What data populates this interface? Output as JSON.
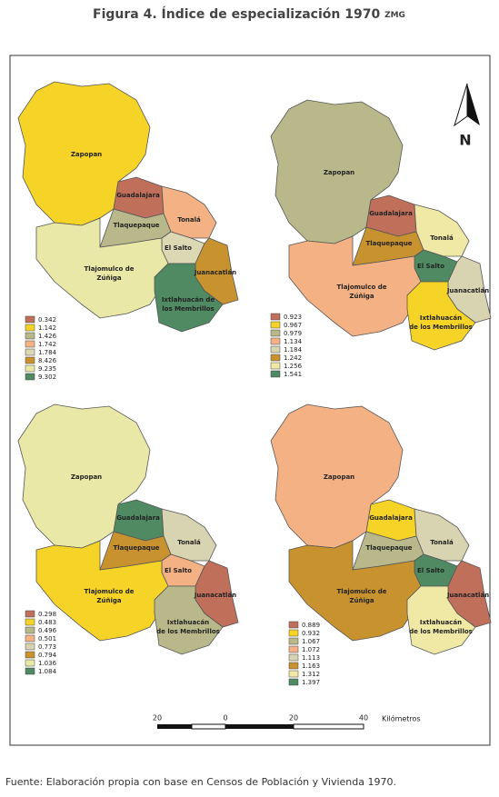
{
  "header": {
    "title": "Figura 4. Índice de especialización 1970",
    "title_suffix": "ZMG"
  },
  "north": "N",
  "scale": {
    "labels": [
      "20",
      "0",
      "20",
      "40"
    ],
    "unit": "Kilómetros"
  },
  "maps": [
    {
      "regions": [
        {
          "label": [
            "Zapopan"
          ],
          "color": "#f5d327"
        },
        {
          "label": [
            "Guadalajara"
          ],
          "color": "#c0705a"
        },
        {
          "label": [
            "Tonalá"
          ],
          "color": "#f4b183"
        },
        {
          "label": [
            "Tlaquepaque"
          ],
          "color": "#b8b88a"
        },
        {
          "label": [
            "El Salto"
          ],
          "color": "#ddd8b4"
        },
        {
          "label": [
            "Tlajomulco de",
            "Zúñiga"
          ],
          "color": "#e9e8a6"
        },
        {
          "label": [
            "Juanacatlán"
          ],
          "color": "#c8922f"
        },
        {
          "label": [
            "Ixtlahuacán de",
            "los Membrillos"
          ],
          "color": "#4f8a62"
        }
      ],
      "legend": [
        {
          "value": "0.342",
          "color": "#c0705a"
        },
        {
          "value": "1.142",
          "color": "#f5d327"
        },
        {
          "value": "1.426",
          "color": "#b8b88a"
        },
        {
          "value": "1.742",
          "color": "#f4b183"
        },
        {
          "value": "1.784",
          "color": "#ddd8b4"
        },
        {
          "value": "8.426",
          "color": "#c8922f"
        },
        {
          "value": "9.235",
          "color": "#e9e8a6"
        },
        {
          "value": "9.302",
          "color": "#4f8a62"
        }
      ]
    },
    {
      "regions": [
        {
          "label": [
            "Zapopan"
          ],
          "color": "#b8b88a"
        },
        {
          "label": [
            "Guadalajara"
          ],
          "color": "#c0705a"
        },
        {
          "label": [
            "Tonalá"
          ],
          "color": "#efe9a5"
        },
        {
          "label": [
            "Tlaquepaque"
          ],
          "color": "#c8922f"
        },
        {
          "label": [
            "El Salto"
          ],
          "color": "#4f8a62"
        },
        {
          "label": [
            "Tlajomulco de",
            "Zúñiga"
          ],
          "color": "#f4b183"
        },
        {
          "label": [
            "Juanacatlán"
          ],
          "color": "#d8d3b0"
        },
        {
          "label": [
            "Ixtlahuacán",
            "de los Membrillos"
          ],
          "color": "#f5d327"
        }
      ],
      "legend": [
        {
          "value": "0.923",
          "color": "#c0705a"
        },
        {
          "value": "0.967",
          "color": "#f5d327"
        },
        {
          "value": "0.979",
          "color": "#b8b88a"
        },
        {
          "value": "1.134",
          "color": "#f4b183"
        },
        {
          "value": "1.184",
          "color": "#d8d3b0"
        },
        {
          "value": "1.242",
          "color": "#c8922f"
        },
        {
          "value": "1.256",
          "color": "#efe9a5"
        },
        {
          "value": "1.541",
          "color": "#4f8a62"
        }
      ]
    },
    {
      "regions": [
        {
          "label": [
            "Zapopan"
          ],
          "color": "#e9e8a6"
        },
        {
          "label": [
            "Guadalajara"
          ],
          "color": "#4f8a62"
        },
        {
          "label": [
            "Tonalá"
          ],
          "color": "#d8d3b0"
        },
        {
          "label": [
            "Tlaquepaque"
          ],
          "color": "#c8922f"
        },
        {
          "label": [
            "El Salto"
          ],
          "color": "#f4b183"
        },
        {
          "label": [
            "Tlajomulco de",
            "Zúñiga"
          ],
          "color": "#f5d327"
        },
        {
          "label": [
            "Juanacatlán"
          ],
          "color": "#c0705a"
        },
        {
          "label": [
            "Ixtlahuacán",
            "de los Membrillos"
          ],
          "color": "#b8b88a"
        }
      ],
      "legend": [
        {
          "value": "0.298",
          "color": "#c0705a"
        },
        {
          "value": "0.483",
          "color": "#f5d327"
        },
        {
          "value": "0.496",
          "color": "#b8b88a"
        },
        {
          "value": "0.501",
          "color": "#f4b183"
        },
        {
          "value": "0.773",
          "color": "#d8d3b0"
        },
        {
          "value": "0.794",
          "color": "#c8922f"
        },
        {
          "value": "1.036",
          "color": "#e9e8a6"
        },
        {
          "value": "1.084",
          "color": "#4f8a62"
        }
      ]
    },
    {
      "regions": [
        {
          "label": [
            "Zapopan"
          ],
          "color": "#f4b183"
        },
        {
          "label": [
            "Guadalajara"
          ],
          "color": "#f5d327"
        },
        {
          "label": [
            "Tonalá"
          ],
          "color": "#d8d3b0"
        },
        {
          "label": [
            "Tlaquepaque"
          ],
          "color": "#b8b88a"
        },
        {
          "label": [
            "El Salto"
          ],
          "color": "#4f8a62"
        },
        {
          "label": [
            "Tlajomulco de",
            "Zúñiga"
          ],
          "color": "#c8922f"
        },
        {
          "label": [
            "Juanacatlán"
          ],
          "color": "#c0705a"
        },
        {
          "label": [
            "Ixtlahuacán",
            "de los Membrillos"
          ],
          "color": "#efe9a5"
        }
      ],
      "legend": [
        {
          "value": "0.889",
          "color": "#c0705a"
        },
        {
          "value": "0.932",
          "color": "#f5d327"
        },
        {
          "value": "1.067",
          "color": "#b8b88a"
        },
        {
          "value": "1.072",
          "color": "#f4b183"
        },
        {
          "value": "1.113",
          "color": "#d8d3b0"
        },
        {
          "value": "1.163",
          "color": "#c8922f"
        },
        {
          "value": "1.312",
          "color": "#efe9a5"
        },
        {
          "value": "1.397",
          "color": "#4f8a62"
        }
      ]
    }
  ],
  "footer": {
    "source": "Fuente: Elaboración propia con base en Censos de Población y Vivienda 1970."
  }
}
